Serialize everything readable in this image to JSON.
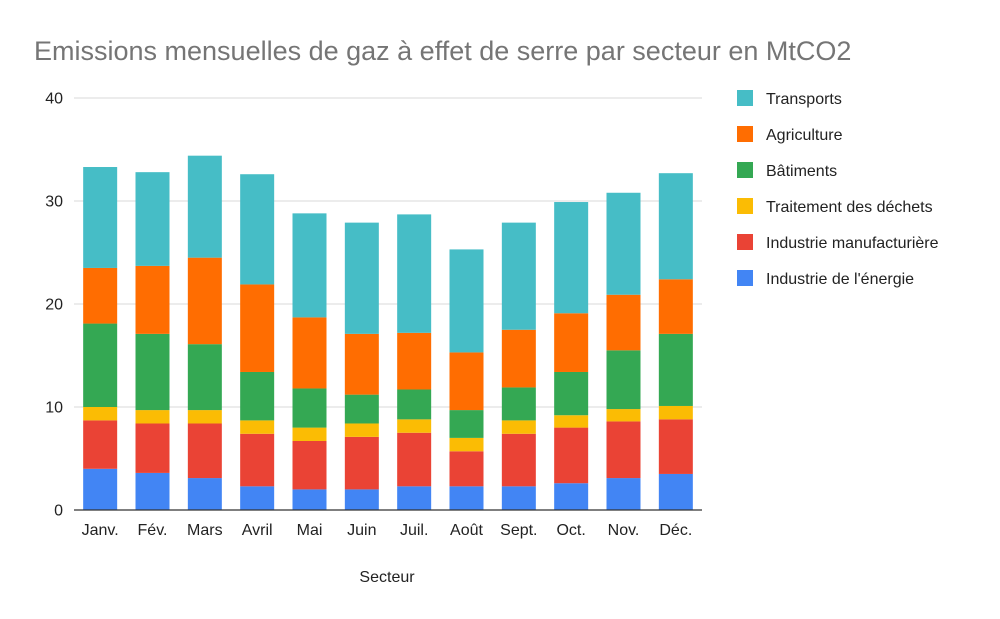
{
  "chart_data": {
    "type": "bar",
    "stacked": true,
    "title": "Emissions mensuelles de gaz à effet de serre par secteur en MtCO2",
    "xlabel": "Secteur",
    "ylabel": "",
    "ylim": [
      0,
      40
    ],
    "yticks": [
      0,
      10,
      20,
      30,
      40
    ],
    "grid": true,
    "legend_position": "right",
    "categories": [
      "Janv.",
      "Fév.",
      "Mars",
      "Avril",
      "Mai",
      "Juin",
      "Juil.",
      "Août",
      "Sept.",
      "Oct.",
      "Nov.",
      "Déc."
    ],
    "series": [
      {
        "name": "Industrie de l'énergie",
        "color": "#4285f4",
        "values": [
          4.0,
          3.6,
          3.1,
          2.3,
          2.0,
          2.0,
          2.3,
          2.3,
          2.3,
          2.6,
          3.1,
          3.5
        ]
      },
      {
        "name": "Industrie manufacturière",
        "color": "#ea4335",
        "values": [
          4.7,
          4.8,
          5.3,
          5.1,
          4.7,
          5.1,
          5.2,
          3.4,
          5.1,
          5.4,
          5.5,
          5.3
        ]
      },
      {
        "name": "Traitement des déchets",
        "color": "#fbbc04",
        "values": [
          1.3,
          1.3,
          1.3,
          1.3,
          1.3,
          1.3,
          1.3,
          1.3,
          1.3,
          1.2,
          1.2,
          1.3
        ]
      },
      {
        "name": "Bâtiments",
        "color": "#34a853",
        "values": [
          8.1,
          7.4,
          6.4,
          4.7,
          3.8,
          2.8,
          2.9,
          2.7,
          3.2,
          4.2,
          5.7,
          7.0
        ]
      },
      {
        "name": "Agriculture",
        "color": "#ff6d01",
        "values": [
          5.4,
          6.6,
          8.4,
          8.5,
          6.9,
          5.9,
          5.5,
          5.6,
          5.6,
          5.7,
          5.4,
          5.3
        ]
      },
      {
        "name": "Transports",
        "color": "#46bdc6",
        "values": [
          9.8,
          9.1,
          9.9,
          10.7,
          10.1,
          10.8,
          11.5,
          10.0,
          10.4,
          10.8,
          9.9,
          10.3
        ]
      }
    ],
    "legend_order": [
      "Transports",
      "Agriculture",
      "Bâtiments",
      "Traitement des déchets",
      "Industrie manufacturière",
      "Industrie de l'énergie"
    ]
  }
}
